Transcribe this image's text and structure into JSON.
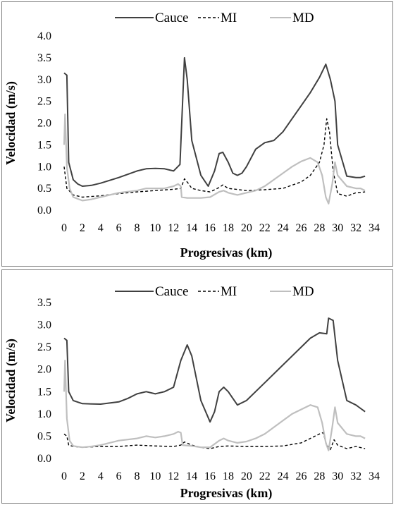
{
  "colors": {
    "cauce": "#404040",
    "mi": "#000000",
    "md": "#bfbfbf"
  },
  "chart_data": [
    {
      "type": "line",
      "xlabel": "Progresivas (km)",
      "ylabel": "Velocidad (m/s)",
      "xlim": [
        0,
        34
      ],
      "ylim": [
        0,
        4.0
      ],
      "xticks": [
        "0",
        "2",
        "4",
        "6",
        "8",
        "10",
        "12",
        "14",
        "16",
        "18",
        "20",
        "22",
        "24",
        "26",
        "28",
        "30",
        "32",
        "34"
      ],
      "yticks": [
        "0.0",
        "0.5",
        "1.0",
        "1.5",
        "2.0",
        "2.5",
        "3.0",
        "3.5",
        "4.0"
      ],
      "legend_position": "top",
      "grid": false,
      "series": [
        {
          "name": "Cauce",
          "style": "solid",
          "x": [
            0,
            0.3,
            0.5,
            1,
            1.5,
            2,
            3,
            4,
            6,
            8,
            9,
            10,
            11,
            12,
            12.7,
            13.2,
            13.5,
            14,
            15,
            15.8,
            16.5,
            17,
            17.4,
            18,
            18.5,
            19,
            19.5,
            20,
            21,
            22,
            23,
            24,
            25,
            26,
            27,
            28,
            28.7,
            29.2,
            29.7,
            30,
            31,
            32,
            32.5,
            33
          ],
          "y": [
            3.15,
            3.1,
            1.1,
            0.7,
            0.6,
            0.55,
            0.57,
            0.62,
            0.75,
            0.9,
            0.95,
            0.96,
            0.95,
            0.9,
            1.05,
            3.5,
            3.0,
            1.6,
            0.8,
            0.55,
            0.9,
            1.3,
            1.33,
            1.1,
            0.85,
            0.8,
            0.85,
            1.0,
            1.4,
            1.55,
            1.6,
            1.8,
            2.1,
            2.4,
            2.7,
            3.05,
            3.35,
            3.0,
            2.5,
            1.5,
            0.78,
            0.75,
            0.75,
            0.78
          ]
        },
        {
          "name": "MI",
          "style": "dashed",
          "x": [
            0,
            0.3,
            1,
            2,
            4,
            6,
            8,
            10,
            12,
            12.8,
            13.2,
            13.6,
            14,
            15,
            16,
            17,
            17.4,
            18,
            20,
            22,
            24,
            26,
            27,
            28,
            28.5,
            28.8,
            29.1,
            29.5,
            30,
            31,
            32,
            33
          ],
          "y": [
            1.0,
            0.5,
            0.35,
            0.3,
            0.33,
            0.38,
            0.42,
            0.45,
            0.48,
            0.5,
            0.72,
            0.62,
            0.5,
            0.45,
            0.42,
            0.52,
            0.58,
            0.5,
            0.45,
            0.47,
            0.5,
            0.65,
            0.8,
            1.1,
            1.5,
            2.1,
            1.8,
            0.9,
            0.38,
            0.32,
            0.4,
            0.42
          ]
        },
        {
          "name": "MD",
          "style": "solid",
          "x": [
            0,
            0.1,
            0.3,
            0.6,
            1,
            2,
            3,
            4,
            6,
            8,
            9,
            10,
            11,
            12,
            12.5,
            12.8,
            12.9,
            13.5,
            15,
            16,
            17,
            17.5,
            18,
            19,
            20,
            21,
            22,
            24,
            25,
            26,
            27,
            27.8,
            28.3,
            28.7,
            29,
            29.4,
            29.7,
            30,
            31,
            32,
            32.5,
            33
          ],
          "y": [
            1.5,
            2.2,
            1.0,
            0.5,
            0.3,
            0.22,
            0.25,
            0.3,
            0.4,
            0.45,
            0.5,
            0.5,
            0.5,
            0.55,
            0.6,
            0.55,
            0.3,
            0.28,
            0.28,
            0.3,
            0.42,
            0.45,
            0.4,
            0.35,
            0.4,
            0.45,
            0.55,
            0.85,
            1.0,
            1.12,
            1.2,
            1.1,
            0.8,
            0.3,
            0.15,
            0.6,
            1.1,
            0.8,
            0.55,
            0.5,
            0.5,
            0.45
          ]
        }
      ]
    },
    {
      "type": "line",
      "xlabel": "Progresivas (km)",
      "ylabel": "Velocidad (m/s)",
      "xlim": [
        0,
        34
      ],
      "ylim": [
        0,
        3.5
      ],
      "xticks": [
        "0",
        "2",
        "4",
        "6",
        "8",
        "10",
        "12",
        "14",
        "16",
        "18",
        "20",
        "22",
        "24",
        "26",
        "28",
        "30",
        "32",
        "34"
      ],
      "yticks": [
        "0.0",
        "0.5",
        "1.0",
        "1.5",
        "2.0",
        "2.5",
        "3.0",
        "3.5"
      ],
      "legend_position": "top",
      "grid": false,
      "series": [
        {
          "name": "Cauce",
          "style": "solid",
          "x": [
            0,
            0.3,
            0.5,
            1,
            2,
            4,
            6,
            7,
            8,
            9,
            10,
            11,
            12,
            12.8,
            13.5,
            14,
            15,
            16,
            16.5,
            17,
            17.5,
            18,
            19,
            20,
            22,
            24,
            26,
            27,
            28,
            28.8,
            29,
            29.5,
            30,
            31,
            32,
            33
          ],
          "y": [
            2.7,
            2.65,
            1.5,
            1.3,
            1.23,
            1.22,
            1.27,
            1.35,
            1.45,
            1.5,
            1.45,
            1.5,
            1.6,
            2.2,
            2.55,
            2.3,
            1.3,
            0.82,
            1.05,
            1.5,
            1.6,
            1.5,
            1.2,
            1.3,
            1.7,
            2.1,
            2.5,
            2.7,
            2.82,
            2.8,
            3.15,
            3.1,
            2.2,
            1.3,
            1.2,
            1.05
          ]
        },
        {
          "name": "MI",
          "style": "dashed",
          "x": [
            0,
            0.3,
            0.5,
            1,
            2,
            4,
            6,
            8,
            10,
            12,
            12.8,
            13.2,
            14,
            15,
            16,
            17,
            18,
            20,
            22,
            24,
            26,
            27,
            28,
            28.4,
            28.8,
            29.2,
            29.6,
            30,
            31,
            32,
            33
          ],
          "y": [
            0.55,
            0.5,
            0.3,
            0.27,
            0.25,
            0.27,
            0.27,
            0.3,
            0.28,
            0.27,
            0.3,
            0.37,
            0.3,
            0.25,
            0.22,
            0.27,
            0.28,
            0.27,
            0.27,
            0.28,
            0.35,
            0.45,
            0.55,
            0.58,
            0.3,
            0.2,
            0.42,
            0.3,
            0.22,
            0.27,
            0.22
          ]
        },
        {
          "name": "MD",
          "style": "solid",
          "x": [
            0,
            0.1,
            0.3,
            0.6,
            1,
            2,
            3,
            4,
            6,
            8,
            9,
            10,
            11,
            12,
            12.5,
            12.8,
            13,
            14,
            15,
            16,
            17,
            17.5,
            18,
            19,
            20,
            21,
            22,
            24,
            25,
            26,
            27,
            27.8,
            28.3,
            28.7,
            29,
            29.4,
            29.7,
            30,
            31,
            32,
            32.5,
            33
          ],
          "y": [
            1.5,
            2.2,
            0.9,
            0.4,
            0.28,
            0.25,
            0.27,
            0.3,
            0.4,
            0.45,
            0.5,
            0.47,
            0.5,
            0.55,
            0.6,
            0.58,
            0.3,
            0.28,
            0.25,
            0.25,
            0.4,
            0.45,
            0.4,
            0.35,
            0.38,
            0.45,
            0.55,
            0.85,
            1.0,
            1.1,
            1.2,
            1.15,
            0.8,
            0.35,
            0.18,
            0.7,
            1.15,
            0.8,
            0.55,
            0.5,
            0.5,
            0.45
          ]
        }
      ]
    }
  ]
}
